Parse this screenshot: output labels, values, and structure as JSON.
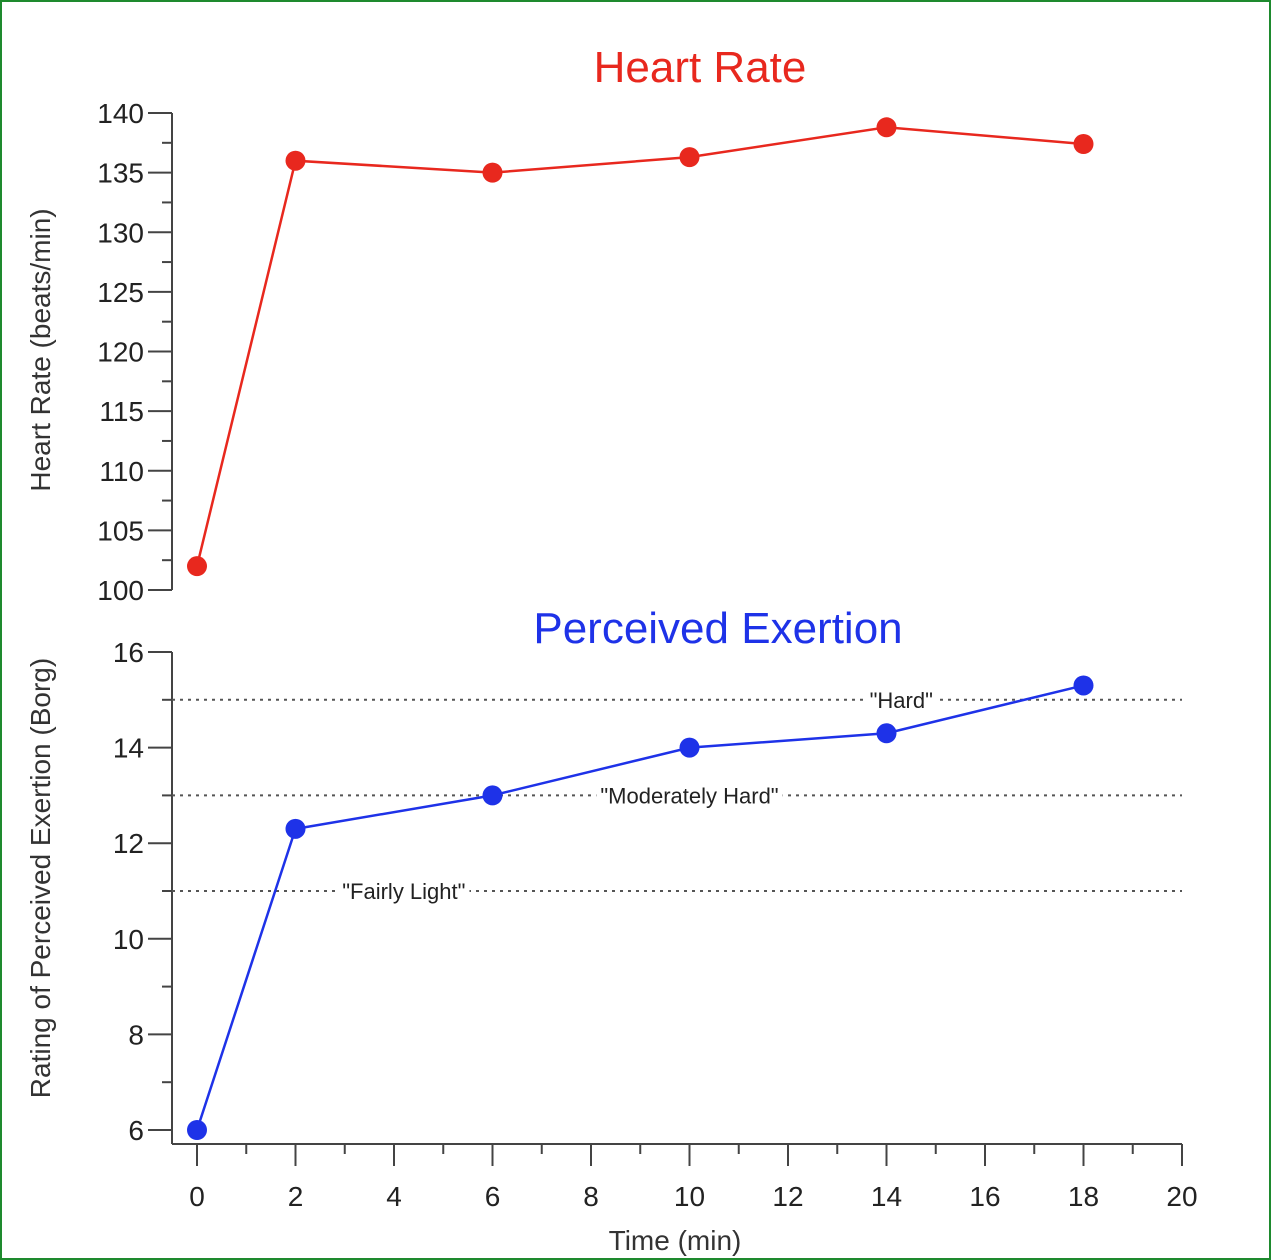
{
  "chart_data": [
    {
      "type": "line",
      "title": "Heart Rate",
      "xlabel": "",
      "ylabel": "Heart Rate (beats/min)",
      "color": "#e8281e",
      "xlim": [
        0,
        20
      ],
      "ylim": [
        100,
        140
      ],
      "yticks": [
        100,
        105,
        110,
        115,
        120,
        125,
        130,
        135,
        140
      ],
      "grid": false,
      "series": [
        {
          "x": [
            0,
            2,
            6,
            10,
            14,
            18
          ],
          "values": [
            102,
            136,
            135,
            136.3,
            138.8,
            137.4
          ]
        }
      ]
    },
    {
      "type": "line",
      "title": "Perceived Exertion",
      "xlabel": "Time (min)",
      "ylabel": "Rating of Perceived Exertion (Borg)",
      "color": "#1e32e8",
      "xlim": [
        0,
        20
      ],
      "ylim": [
        6,
        16
      ],
      "yticks": [
        6,
        8,
        10,
        12,
        14,
        16
      ],
      "xticks": [
        0,
        2,
        4,
        6,
        8,
        10,
        12,
        14,
        16,
        18,
        20
      ],
      "grid": false,
      "series": [
        {
          "x": [
            0,
            2,
            6,
            10,
            14,
            18
          ],
          "values": [
            6,
            12.3,
            13,
            14,
            14.3,
            15.3
          ]
        }
      ],
      "reference_lines": [
        {
          "y": 15,
          "label": "\"Hard\""
        },
        {
          "y": 13,
          "label": "\"Moderately Hard\""
        },
        {
          "y": 11,
          "label": "\"Fairly Light\""
        }
      ]
    }
  ]
}
